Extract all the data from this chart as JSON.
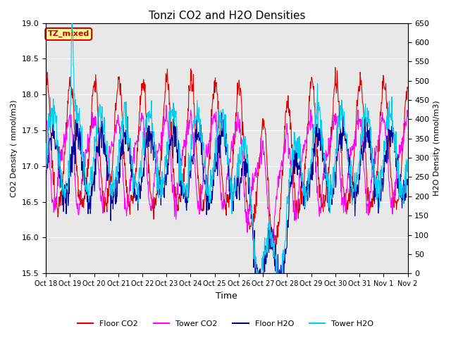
{
  "title": "Tonzi CO2 and H2O Densities",
  "xlabel": "Time",
  "ylabel_left": "CO2 Density ( mmol/m3)",
  "ylabel_right": "H2O Density (mmol/m3)",
  "ylim_left": [
    15.5,
    19.0
  ],
  "ylim_right": [
    0,
    650
  ],
  "yticks_left": [
    15.5,
    16.0,
    16.5,
    17.0,
    17.5,
    18.0,
    18.5,
    19.0
  ],
  "yticks_right": [
    0,
    50,
    100,
    150,
    200,
    250,
    300,
    350,
    400,
    450,
    500,
    550,
    600,
    650
  ],
  "xtick_labels": [
    "Oct 18",
    "Oct 19",
    "Oct 20",
    "Oct 21",
    "Oct 22",
    "Oct 23",
    "Oct 24",
    "Oct 25",
    "Oct 26",
    "Oct 27",
    "Oct 28",
    "Oct 29",
    "Oct 30",
    "Oct 31",
    "Nov 1",
    "Nov 2"
  ],
  "annotation_text": "TZ_mixed",
  "annotation_bg": "#ffff99",
  "annotation_border": "#cc0000",
  "annotation_fg": "#cc0000",
  "colors": {
    "floor_co2": "#dd0000",
    "tower_co2": "#ff00ff",
    "floor_h2o": "#000099",
    "tower_h2o": "#00ccee"
  },
  "legend_labels": [
    "Floor CO2",
    "Tower CO2",
    "Floor H2O",
    "Tower H2O"
  ],
  "bg_color": "#d8d8d8",
  "plot_bg": "#e8e8e8",
  "n_points": 960
}
